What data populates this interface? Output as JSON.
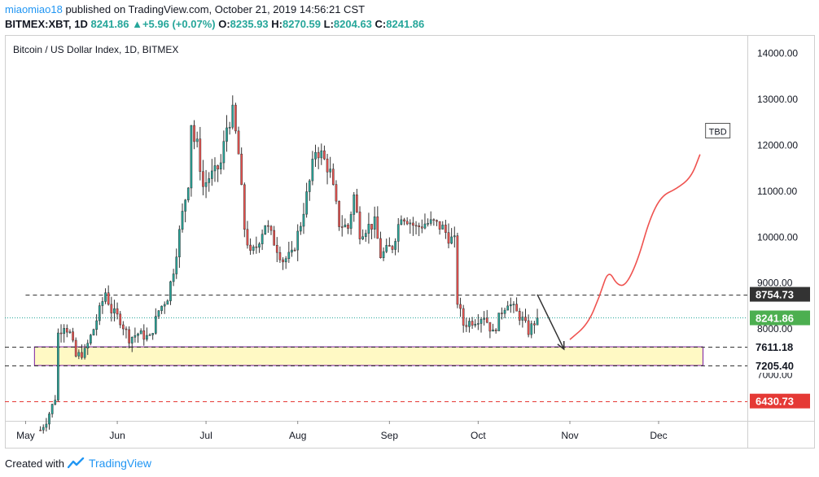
{
  "header": {
    "user": "miaomiao18",
    "published": "published on TradingView.com, October 21, 2019 14:56:21 CST",
    "symbol": "BITMEX:XBT, 1D",
    "last": "8241.86",
    "change": "+5.96 (+0.07%)",
    "o_label": "O:",
    "o": "8235.93",
    "h_label": "H:",
    "h": "8270.59",
    "l_label": "L:",
    "l": "8204.63",
    "c_label": "C:",
    "c": "8241.86"
  },
  "footer": {
    "created_with": "Created with",
    "brand": "TradingView"
  },
  "colors": {
    "up": "#26a69a",
    "down": "#ef5350",
    "wick": "#333333",
    "accent": "#2196f3"
  },
  "chart_data": {
    "type": "candlestick",
    "title": "Bitcoin / US Dollar Index, 1D, BITMEX",
    "x_axis": {
      "type": "date",
      "min": "2019-04-24",
      "max": "2019-12-31",
      "ticks": [
        {
          "label": "May",
          "date": "2019-05-01"
        },
        {
          "label": "Jun",
          "date": "2019-06-01"
        },
        {
          "label": "Jul",
          "date": "2019-07-01"
        },
        {
          "label": "Aug",
          "date": "2019-08-01"
        },
        {
          "label": "Sep",
          "date": "2019-09-01"
        },
        {
          "label": "Oct",
          "date": "2019-10-01"
        },
        {
          "label": "Nov",
          "date": "2019-11-01"
        },
        {
          "label": "Dec",
          "date": "2019-12-01"
        }
      ]
    },
    "y_axis": {
      "min": 6000,
      "max": 14400,
      "position": "right",
      "ticks": [
        "14000.00",
        "13000.00",
        "12000.00",
        "11000.00",
        "10000.00",
        "9000.00",
        "8000.00",
        "7000.00"
      ]
    },
    "price_labels": [
      {
        "value": 8754.73,
        "text": "8754.73",
        "style": "dark"
      },
      {
        "value": 8241.86,
        "text": "8241.86",
        "style": "last"
      },
      {
        "value": 7611.18,
        "text": "7611.18",
        "style": "plain"
      },
      {
        "value": 7205.4,
        "text": "7205.40",
        "style": "plain"
      },
      {
        "value": 6430.73,
        "text": "6430.73",
        "style": "red"
      }
    ],
    "horizontal_lines": [
      {
        "value": 8754.73,
        "from": "2019-05-01",
        "color": "#333333",
        "dash": true
      },
      {
        "value": 7611.18,
        "from": "2019-04-24",
        "color": "#333333",
        "dash": true
      },
      {
        "value": 7205.4,
        "from": "2019-04-24",
        "color": "#333333",
        "dash": true
      },
      {
        "value": 6430.73,
        "from": "2019-04-24",
        "color": "#e53935",
        "dash": true
      },
      {
        "value": 8241.86,
        "from": "2019-04-24",
        "color": "#26a69a",
        "dash": true,
        "dotted": true
      }
    ],
    "support_zone": {
      "from": "2019-05-04",
      "to": "2019-12-16",
      "low": 7205.4,
      "high": 7611.18,
      "fill": "#fff9c4",
      "stroke": "#7b1fa2"
    },
    "annotation_text": "TBD",
    "annotation_box": {
      "date": "2019-12-21",
      "value": 12300
    },
    "arrow": {
      "from": {
        "date": "2019-10-21",
        "value": 8750
      },
      "to": {
        "date": "2019-10-30",
        "value": 7560
      }
    },
    "projection_path": [
      {
        "date": "2019-11-01",
        "value": 7770
      },
      {
        "date": "2019-11-07",
        "value": 8100
      },
      {
        "date": "2019-11-11",
        "value": 8700
      },
      {
        "date": "2019-11-14",
        "value": 9300
      },
      {
        "date": "2019-11-17",
        "value": 8950
      },
      {
        "date": "2019-11-20",
        "value": 8950
      },
      {
        "date": "2019-11-24",
        "value": 9500
      },
      {
        "date": "2019-11-28",
        "value": 10400
      },
      {
        "date": "2019-12-02",
        "value": 10900
      },
      {
        "date": "2019-12-07",
        "value": 11050
      },
      {
        "date": "2019-12-12",
        "value": 11300
      },
      {
        "date": "2019-12-15",
        "value": 11800
      }
    ],
    "series": [
      {
        "name": "candles",
        "anchors": [
          [
            "2019-05-06",
            5800
          ],
          [
            "2019-05-08",
            6000
          ],
          [
            "2019-05-11",
            6500
          ],
          [
            "2019-05-12",
            7900
          ],
          [
            "2019-05-14",
            8100
          ],
          [
            "2019-05-16",
            7900
          ],
          [
            "2019-05-18",
            7400
          ],
          [
            "2019-05-21",
            7500
          ],
          [
            "2019-05-24",
            8000
          ],
          [
            "2019-05-26",
            8400
          ],
          [
            "2019-05-28",
            8800
          ],
          [
            "2019-05-30",
            8400
          ],
          [
            "2019-06-02",
            8200
          ],
          [
            "2019-06-05",
            7800
          ],
          [
            "2019-06-08",
            7900
          ],
          [
            "2019-06-12",
            7800
          ],
          [
            "2019-06-15",
            8400
          ],
          [
            "2019-06-18",
            8700
          ],
          [
            "2019-06-20",
            9300
          ],
          [
            "2019-06-23",
            10500
          ],
          [
            "2019-06-25",
            11200
          ],
          [
            "2019-06-26",
            12500
          ],
          [
            "2019-06-27",
            12100
          ],
          [
            "2019-06-28",
            12000
          ],
          [
            "2019-06-30",
            11100
          ],
          [
            "2019-07-02",
            11300
          ],
          [
            "2019-07-04",
            11400
          ],
          [
            "2019-07-06",
            11600
          ],
          [
            "2019-07-08",
            12400
          ],
          [
            "2019-07-10",
            12700
          ],
          [
            "2019-07-12",
            11800
          ],
          [
            "2019-07-14",
            10200
          ],
          [
            "2019-07-16",
            9600
          ],
          [
            "2019-07-18",
            9800
          ],
          [
            "2019-07-21",
            10300
          ],
          [
            "2019-07-24",
            9900
          ],
          [
            "2019-07-27",
            9500
          ],
          [
            "2019-07-30",
            9600
          ],
          [
            "2019-08-02",
            10300
          ],
          [
            "2019-08-05",
            11200
          ],
          [
            "2019-08-07",
            11900
          ],
          [
            "2019-08-09",
            11800
          ],
          [
            "2019-08-12",
            11400
          ],
          [
            "2019-08-15",
            10300
          ],
          [
            "2019-08-18",
            10200
          ],
          [
            "2019-08-20",
            10900
          ],
          [
            "2019-08-22",
            10100
          ],
          [
            "2019-08-24",
            10200
          ],
          [
            "2019-08-27",
            10300
          ],
          [
            "2019-08-29",
            9600
          ],
          [
            "2019-09-02",
            9800
          ],
          [
            "2019-09-05",
            10500
          ],
          [
            "2019-09-07",
            10400
          ],
          [
            "2019-09-10",
            10200
          ],
          [
            "2019-09-13",
            10300
          ],
          [
            "2019-09-16",
            10300
          ],
          [
            "2019-09-19",
            10200
          ],
          [
            "2019-09-21",
            10000
          ],
          [
            "2019-09-23",
            9900
          ],
          [
            "2019-09-24",
            8600
          ],
          [
            "2019-09-26",
            8100
          ],
          [
            "2019-09-30",
            8200
          ],
          [
            "2019-10-03",
            8300
          ],
          [
            "2019-10-06",
            7900
          ],
          [
            "2019-10-09",
            8400
          ],
          [
            "2019-10-11",
            8600
          ],
          [
            "2019-10-14",
            8350
          ],
          [
            "2019-10-16",
            8200
          ],
          [
            "2019-10-18",
            7950
          ],
          [
            "2019-10-21",
            8241.86
          ]
        ]
      }
    ]
  }
}
